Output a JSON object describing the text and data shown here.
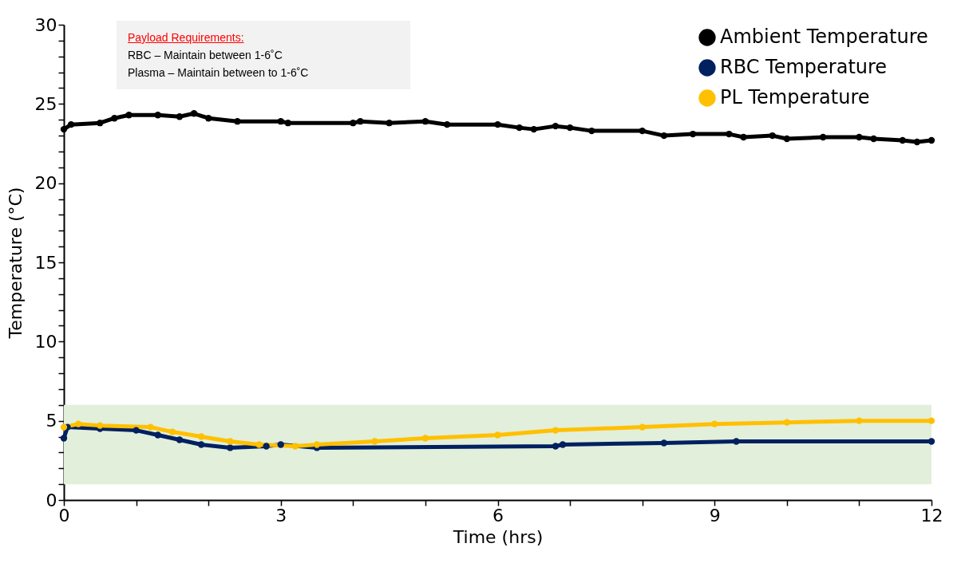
{
  "chart_data": {
    "type": "line",
    "xlabel": "Time (hrs)",
    "ylabel": "Temperature (°C)",
    "xlim": [
      0,
      12
    ],
    "ylim": [
      0,
      30
    ],
    "xticks": [
      0,
      {
        "value": 1,
        "label": null
      },
      {
        "value": 2,
        "label": null
      },
      3,
      {
        "value": 4,
        "label": null
      },
      {
        "value": 5,
        "label": null
      },
      6,
      {
        "value": 7,
        "label": null
      },
      {
        "value": 8,
        "label": null
      },
      9,
      {
        "value": 10,
        "label": null
      },
      {
        "value": 11,
        "label": null
      },
      12
    ],
    "yticks": [
      0,
      {
        "value": 1,
        "label": null
      },
      {
        "value": 2,
        "label": null
      },
      {
        "value": 3,
        "label": null
      },
      {
        "value": 4,
        "label": null
      },
      5,
      {
        "value": 6,
        "label": null
      },
      {
        "value": 7,
        "label": null
      },
      {
        "value": 8,
        "label": null
      },
      {
        "value": 9,
        "label": null
      },
      10,
      {
        "value": 11,
        "label": null
      },
      {
        "value": 12,
        "label": null
      },
      {
        "value": 13,
        "label": null
      },
      {
        "value": 14,
        "label": null
      },
      15,
      {
        "value": 16,
        "label": null
      },
      {
        "value": 17,
        "label": null
      },
      {
        "value": 18,
        "label": null
      },
      {
        "value": 19,
        "label": null
      },
      20,
      {
        "value": 21,
        "label": null
      },
      {
        "value": 22,
        "label": null
      },
      {
        "value": 23,
        "label": null
      },
      {
        "value": 24,
        "label": null
      },
      25,
      {
        "value": 26,
        "label": null
      },
      {
        "value": 27,
        "label": null
      },
      {
        "value": 28,
        "label": null
      },
      {
        "value": 29,
        "label": null
      },
      30
    ],
    "grid": false,
    "legend": "top right",
    "marker": "circle",
    "line_style": "solid",
    "bands": [
      {
        "axis": "y",
        "from": 1,
        "to": 6,
        "color": "#e2efda"
      }
    ],
    "annotations": [
      "Payload Requirements:",
      "RBC – Maintain between 1-6˚C",
      "Plasma – Maintain between to 1-6˚C"
    ],
    "series": [
      {
        "name": "Ambient Temperature",
        "color": "#000000",
        "x": [
          0,
          0.1,
          0.5,
          0.7,
          0.9,
          1.3,
          1.6,
          1.8,
          2.0,
          2.4,
          3.0,
          3.1,
          4.0,
          4.1,
          4.5,
          5.0,
          5.3,
          6.0,
          6.3,
          6.5,
          6.8,
          7.0,
          7.3,
          8.0,
          8.3,
          8.7,
          9.2,
          9.4,
          9.8,
          10.0,
          10.5,
          11.0,
          11.2,
          11.6,
          11.8,
          12.0
        ],
        "values": [
          23.4,
          23.7,
          23.8,
          24.1,
          24.3,
          24.3,
          24.2,
          24.4,
          24.1,
          23.9,
          23.9,
          23.8,
          23.8,
          23.9,
          23.8,
          23.9,
          23.7,
          23.7,
          23.5,
          23.4,
          23.6,
          23.5,
          23.3,
          23.3,
          23.0,
          23.1,
          23.1,
          22.9,
          23.0,
          22.8,
          22.9,
          22.9,
          22.8,
          22.7,
          22.6,
          22.7
        ]
      },
      {
        "name": "RBC Temperature",
        "color": "#002060",
        "x": [
          0,
          0.05,
          0.5,
          1.0,
          1.3,
          1.6,
          1.9,
          2.3,
          2.8,
          3.0,
          3.5,
          6.8,
          6.9,
          8.3,
          9.3,
          12.0
        ],
        "values": [
          3.9,
          4.6,
          4.5,
          4.4,
          4.1,
          3.8,
          3.5,
          3.3,
          3.4,
          3.5,
          3.3,
          3.4,
          3.5,
          3.6,
          3.7,
          3.7
        ]
      },
      {
        "name": "PL Temperature",
        "color": "#ffc000",
        "x": [
          0,
          0.2,
          0.5,
          1.2,
          1.5,
          1.9,
          2.3,
          2.7,
          3.2,
          3.5,
          4.3,
          5.0,
          6.0,
          6.8,
          8.0,
          9.0,
          10.0,
          11.0,
          12.0
        ],
        "values": [
          4.6,
          4.8,
          4.7,
          4.6,
          4.3,
          4.0,
          3.7,
          3.5,
          3.4,
          3.5,
          3.7,
          3.9,
          4.1,
          4.4,
          4.6,
          4.8,
          4.9,
          5.0,
          5.0
        ]
      }
    ]
  }
}
